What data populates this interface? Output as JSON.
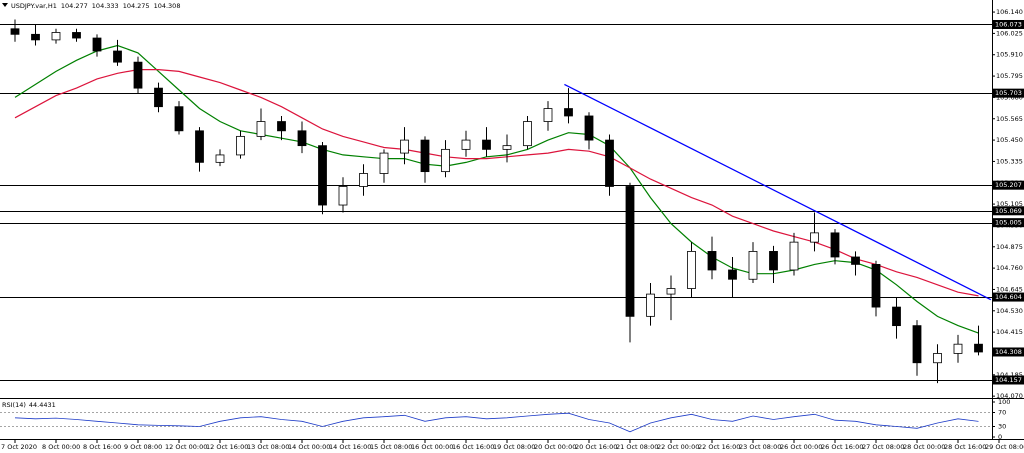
{
  "chart_data": {
    "type": "candlestick",
    "title": "USDJPY.var,H1",
    "header_ohlc": [
      104.277,
      104.333,
      104.275,
      104.308
    ],
    "categories": [
      "7 Oct 2020",
      null,
      "8 Oct 00:00",
      null,
      "8 Oct 16:00",
      null,
      "9 Oct 08:00",
      null,
      "12 Oct 00:00",
      null,
      "12 Oct 16:00",
      null,
      "13 Oct 08:00",
      null,
      "14 Oct 00:00",
      null,
      "14 Oct 16:00",
      null,
      "15 Oct 08:00",
      null,
      "16 Oct 00:00",
      null,
      "16 Oct 16:00",
      null,
      "19 Oct 08:00",
      null,
      "20 Oct 00:00",
      null,
      "20 Oct 16:00",
      null,
      "21 Oct 08:00",
      null,
      "22 Oct 00:00",
      null,
      "22 Oct 16:00",
      null,
      "23 Oct 08:00",
      null,
      "26 Oct 00:00",
      null,
      "26 Oct 16:00",
      null,
      "27 Oct 08:00",
      null,
      "28 Oct 00:00",
      null,
      "28 Oct 16:00",
      null,
      "29 Oct 08:00"
    ],
    "ohlc": [
      [
        106.05,
        106.1,
        105.98,
        106.02
      ],
      [
        106.02,
        106.07,
        105.96,
        105.99
      ],
      [
        105.99,
        106.05,
        105.97,
        106.03
      ],
      [
        106.03,
        106.05,
        105.98,
        106.0
      ],
      [
        106.0,
        106.02,
        105.9,
        105.93
      ],
      [
        105.93,
        105.99,
        105.85,
        105.87
      ],
      [
        105.87,
        105.9,
        105.7,
        105.73
      ],
      [
        105.73,
        105.76,
        105.6,
        105.63
      ],
      [
        105.63,
        105.66,
        105.48,
        105.5
      ],
      [
        105.5,
        105.52,
        105.28,
        105.33
      ],
      [
        105.33,
        105.4,
        105.31,
        105.37
      ],
      [
        105.37,
        105.5,
        105.35,
        105.47
      ],
      [
        105.47,
        105.62,
        105.45,
        105.55
      ],
      [
        105.55,
        105.58,
        105.45,
        105.5
      ],
      [
        105.5,
        105.55,
        105.38,
        105.42
      ],
      [
        105.42,
        105.44,
        105.05,
        105.1
      ],
      [
        105.1,
        105.25,
        105.06,
        105.2
      ],
      [
        105.2,
        105.32,
        105.15,
        105.27
      ],
      [
        105.27,
        105.4,
        105.22,
        105.38
      ],
      [
        105.38,
        105.52,
        105.32,
        105.45
      ],
      [
        105.45,
        105.47,
        105.22,
        105.28
      ],
      [
        105.28,
        105.45,
        105.25,
        105.4
      ],
      [
        105.4,
        105.5,
        105.36,
        105.45
      ],
      [
        105.45,
        105.52,
        105.36,
        105.4
      ],
      [
        105.4,
        105.48,
        105.33,
        105.42
      ],
      [
        105.42,
        105.58,
        105.4,
        105.55
      ],
      [
        105.55,
        105.66,
        105.5,
        105.62
      ],
      [
        105.62,
        105.73,
        105.54,
        105.58
      ],
      [
        105.58,
        105.6,
        105.4,
        105.45
      ],
      [
        105.45,
        105.48,
        105.15,
        105.2
      ],
      [
        105.2,
        105.22,
        104.36,
        104.5
      ],
      [
        104.5,
        104.68,
        104.45,
        104.62
      ],
      [
        104.62,
        104.72,
        104.48,
        104.65
      ],
      [
        104.65,
        104.9,
        104.6,
        104.85
      ],
      [
        104.85,
        104.93,
        104.7,
        104.75
      ],
      [
        104.75,
        104.82,
        104.6,
        104.7
      ],
      [
        104.7,
        104.9,
        104.68,
        104.85
      ],
      [
        104.85,
        104.88,
        104.68,
        104.75
      ],
      [
        104.75,
        104.95,
        104.72,
        104.9
      ],
      [
        104.9,
        105.06,
        104.85,
        104.95
      ],
      [
        104.95,
        104.97,
        104.78,
        104.82
      ],
      [
        104.82,
        104.85,
        104.72,
        104.78
      ],
      [
        104.78,
        104.8,
        104.5,
        104.55
      ],
      [
        104.55,
        104.6,
        104.38,
        104.45
      ],
      [
        104.45,
        104.48,
        104.18,
        104.25
      ],
      [
        104.25,
        104.35,
        104.14,
        104.3
      ],
      [
        104.3,
        104.4,
        104.25,
        104.35
      ],
      [
        104.35,
        104.45,
        104.29,
        104.308
      ],
      null
    ],
    "moving_averages": [
      {
        "color": "#008000",
        "values": [
          105.68,
          105.75,
          105.82,
          105.88,
          105.93,
          105.96,
          105.92,
          105.82,
          105.72,
          105.62,
          105.55,
          105.5,
          105.48,
          105.46,
          105.44,
          105.4,
          105.37,
          105.36,
          105.35,
          105.35,
          105.32,
          105.31,
          105.33,
          105.36,
          105.37,
          105.4,
          105.45,
          105.49,
          105.48,
          105.42,
          105.3,
          105.14,
          105.0,
          104.9,
          104.82,
          104.76,
          104.73,
          104.73,
          104.75,
          104.78,
          104.8,
          104.79,
          104.75,
          104.67,
          104.58,
          104.5,
          104.45,
          104.41,
          null
        ]
      },
      {
        "color": "#dc143c",
        "values": [
          105.57,
          105.63,
          105.69,
          105.73,
          105.78,
          105.81,
          105.83,
          105.83,
          105.82,
          105.79,
          105.76,
          105.72,
          105.68,
          105.63,
          105.57,
          105.51,
          105.47,
          105.44,
          105.41,
          105.4,
          105.38,
          105.36,
          105.35,
          105.35,
          105.36,
          105.37,
          105.38,
          105.4,
          105.39,
          105.36,
          105.3,
          105.24,
          105.19,
          105.14,
          105.1,
          105.04,
          105.0,
          104.96,
          104.93,
          104.9,
          104.86,
          104.81,
          104.78,
          104.74,
          104.71,
          104.67,
          104.63,
          104.61,
          null
        ]
      }
    ],
    "trendline": {
      "color": "#0000ff",
      "start": [
        26.8,
        105.75
      ],
      "end": [
        47.6,
        104.59
      ]
    },
    "levels": [
      106.073,
      105.703,
      105.207,
      105.069,
      105.005,
      104.604,
      104.157
    ],
    "bid": 104.308,
    "ylim": [
      104.06,
      106.205
    ],
    "yticks": [
      {
        "value": 106.14,
        "label": "106.140"
      },
      106.025,
      {
        "value": 105.91,
        "label": "105.910"
      },
      105.795,
      {
        "value": 105.68,
        "label": "105.680"
      },
      105.565,
      {
        "value": 105.45,
        "label": "105.450"
      },
      105.335,
      {
        "value": 105.22,
        "label": "105.220"
      },
      105.105,
      {
        "value": 104.99,
        "label": "104.990"
      },
      104.875,
      {
        "value": 104.76,
        "label": "104.760"
      },
      104.645,
      {
        "value": 104.53,
        "label": "104.530"
      },
      104.415,
      {
        "value": 104.3,
        "label": "104.300"
      },
      104.185,
      {
        "value": 104.07,
        "label": "104.070"
      }
    ],
    "rsi": {
      "name": "RSI(14)",
      "color": "#1e3cc8",
      "ylim": [
        0,
        100
      ],
      "yticks": [
        100,
        70,
        30,
        0
      ],
      "levels": [
        70,
        30
      ],
      "values": [
        55,
        52,
        54,
        50,
        45,
        40,
        35,
        33,
        32,
        30,
        45,
        55,
        58,
        50,
        45,
        30,
        45,
        55,
        58,
        62,
        45,
        55,
        58,
        52,
        55,
        60,
        65,
        68,
        50,
        40,
        15,
        40,
        55,
        65,
        50,
        45,
        60,
        50,
        58,
        65,
        48,
        45,
        35,
        30,
        25,
        40,
        52,
        44.4431,
        null
      ]
    }
  }
}
